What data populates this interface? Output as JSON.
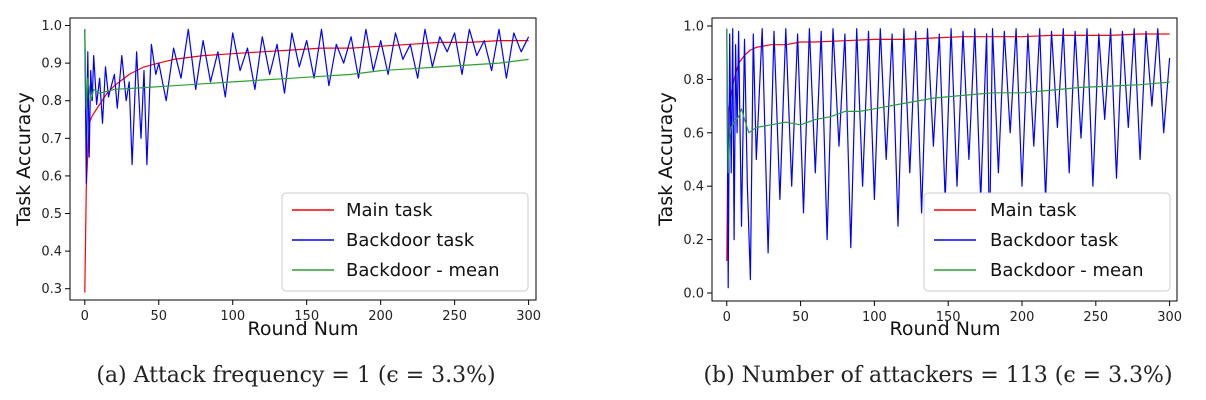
{
  "chart_data": [
    {
      "type": "line",
      "caption": "(a) Attack frequency = 1 (ϵ = 3.3%)",
      "xlabel": "Round Num",
      "ylabel": "Task Accuracy",
      "xlim": [
        -10,
        305
      ],
      "ylim": [
        0.27,
        1.02
      ],
      "xticks": [
        "0",
        "50",
        "100",
        "150",
        "200",
        "250",
        "300"
      ],
      "yticks": [
        "0.3",
        "0.4",
        "0.5",
        "0.6",
        "0.7",
        "0.8",
        "0.9",
        "1.0"
      ],
      "legend_position": "lower-right",
      "series": [
        {
          "name": "Main task",
          "color": "#ff0000",
          "x": [
            0,
            1,
            3,
            5,
            10,
            15,
            20,
            30,
            40,
            50,
            60,
            70,
            80,
            100,
            120,
            140,
            160,
            180,
            200,
            220,
            240,
            260,
            280,
            300
          ],
          "values": [
            0.29,
            0.57,
            0.74,
            0.76,
            0.79,
            0.82,
            0.84,
            0.87,
            0.89,
            0.9,
            0.91,
            0.915,
            0.92,
            0.925,
            0.93,
            0.935,
            0.94,
            0.94,
            0.945,
            0.95,
            0.955,
            0.955,
            0.96,
            0.96
          ]
        },
        {
          "name": "Backdoor task",
          "color": "#0000ff",
          "x": [
            0,
            1,
            2,
            3,
            4,
            5,
            6,
            8,
            10,
            12,
            14,
            16,
            18,
            20,
            22,
            25,
            28,
            30,
            32,
            35,
            38,
            40,
            42,
            45,
            48,
            50,
            55,
            60,
            65,
            70,
            75,
            80,
            85,
            90,
            95,
            100,
            105,
            110,
            115,
            120,
            125,
            130,
            135,
            140,
            145,
            150,
            155,
            160,
            165,
            170,
            175,
            180,
            185,
            190,
            195,
            200,
            205,
            210,
            215,
            220,
            225,
            230,
            235,
            240,
            245,
            250,
            255,
            260,
            265,
            270,
            275,
            280,
            285,
            290,
            295,
            300
          ],
          "values": [
            0.99,
            0.58,
            0.93,
            0.65,
            0.88,
            0.8,
            0.92,
            0.79,
            0.86,
            0.74,
            0.89,
            0.81,
            0.84,
            0.87,
            0.78,
            0.92,
            0.8,
            0.85,
            0.63,
            0.93,
            0.7,
            0.88,
            0.63,
            0.95,
            0.87,
            0.9,
            0.8,
            0.94,
            0.86,
            0.99,
            0.83,
            0.96,
            0.85,
            0.93,
            0.81,
            0.98,
            0.88,
            0.94,
            0.83,
            0.97,
            0.87,
            0.95,
            0.82,
            0.98,
            0.89,
            0.96,
            0.86,
            0.99,
            0.84,
            0.95,
            0.9,
            0.97,
            0.86,
            0.99,
            0.88,
            0.96,
            0.87,
            0.98,
            0.91,
            0.95,
            0.86,
            0.99,
            0.89,
            0.97,
            0.93,
            0.98,
            0.87,
            0.99,
            0.92,
            0.96,
            0.88,
            0.99,
            0.86,
            0.98,
            0.93,
            0.97
          ]
        },
        {
          "name": "Backdoor - mean",
          "color": "#2ca02c",
          "x": [
            0,
            1,
            2,
            4,
            6,
            10,
            20,
            40,
            60,
            80,
            100,
            120,
            140,
            160,
            180,
            200,
            220,
            240,
            260,
            280,
            300
          ],
          "values": [
            0.99,
            0.78,
            0.86,
            0.8,
            0.83,
            0.82,
            0.83,
            0.835,
            0.84,
            0.845,
            0.85,
            0.855,
            0.86,
            0.865,
            0.87,
            0.88,
            0.885,
            0.89,
            0.895,
            0.9,
            0.91
          ]
        }
      ]
    },
    {
      "type": "line",
      "caption": "(b) Number of attackers = 113 (ϵ = 3.3%)",
      "xlabel": "Round Num",
      "ylabel": "Task Accuracy",
      "xlim": [
        -10,
        305
      ],
      "ylim": [
        -0.03,
        1.03
      ],
      "xticks": [
        "0",
        "50",
        "100",
        "150",
        "200",
        "250",
        "300"
      ],
      "yticks": [
        "0.0",
        "0.2",
        "0.4",
        "0.6",
        "0.8",
        "1.0"
      ],
      "legend_position": "lower-right",
      "series": [
        {
          "name": "Main task",
          "color": "#ff0000",
          "x": [
            0,
            1,
            3,
            5,
            8,
            12,
            16,
            20,
            30,
            40,
            50,
            60,
            80,
            100,
            120,
            140,
            160,
            180,
            200,
            220,
            240,
            260,
            280,
            300
          ],
          "values": [
            0.12,
            0.68,
            0.75,
            0.8,
            0.86,
            0.89,
            0.91,
            0.92,
            0.93,
            0.93,
            0.94,
            0.94,
            0.945,
            0.95,
            0.95,
            0.955,
            0.96,
            0.96,
            0.96,
            0.965,
            0.965,
            0.965,
            0.97,
            0.97
          ]
        },
        {
          "name": "Backdoor task",
          "color": "#0000ff",
          "x": [
            0,
            1,
            2,
            3,
            4,
            5,
            6,
            7,
            8,
            10,
            12,
            14,
            16,
            18,
            20,
            24,
            28,
            32,
            36,
            40,
            44,
            48,
            52,
            56,
            60,
            64,
            68,
            72,
            76,
            80,
            84,
            88,
            92,
            96,
            100,
            104,
            108,
            112,
            116,
            120,
            124,
            128,
            132,
            136,
            140,
            144,
            148,
            152,
            156,
            160,
            164,
            168,
            172,
            176,
            178,
            180,
            184,
            188,
            192,
            196,
            200,
            204,
            208,
            212,
            216,
            220,
            224,
            228,
            232,
            236,
            240,
            244,
            248,
            252,
            256,
            260,
            264,
            268,
            272,
            276,
            280,
            284,
            288,
            292,
            296,
            300
          ],
          "values": [
            0.99,
            0.02,
            0.97,
            0.45,
            0.99,
            0.2,
            0.93,
            0.6,
            0.98,
            0.25,
            0.95,
            0.4,
            0.05,
            0.97,
            0.5,
            0.99,
            0.15,
            0.98,
            0.35,
            0.99,
            0.4,
            0.97,
            0.3,
            0.99,
            0.45,
            0.98,
            0.2,
            0.99,
            0.55,
            0.97,
            0.17,
            0.99,
            0.4,
            0.98,
            0.35,
            0.99,
            0.5,
            0.97,
            0.25,
            0.99,
            0.45,
            0.98,
            0.3,
            0.99,
            0.55,
            0.97,
            0.35,
            0.99,
            0.4,
            0.98,
            0.5,
            0.99,
            0.35,
            0.97,
            0.18,
            0.99,
            0.45,
            0.98,
            0.6,
            0.99,
            0.4,
            0.97,
            0.55,
            0.99,
            0.35,
            0.98,
            0.62,
            0.99,
            0.45,
            0.98,
            0.58,
            0.99,
            0.4,
            0.97,
            0.65,
            0.99,
            0.43,
            0.98,
            0.62,
            0.99,
            0.5,
            0.98,
            0.7,
            0.99,
            0.6,
            0.88
          ]
        },
        {
          "name": "Backdoor - mean",
          "color": "#2ca02c",
          "x": [
            0,
            1,
            2,
            3,
            5,
            8,
            10,
            12,
            15,
            20,
            30,
            40,
            50,
            60,
            70,
            80,
            90,
            100,
            120,
            140,
            160,
            180,
            200,
            220,
            240,
            260,
            280,
            300
          ],
          "values": [
            0.99,
            0.45,
            0.58,
            0.62,
            0.64,
            0.66,
            0.69,
            0.65,
            0.6,
            0.62,
            0.63,
            0.64,
            0.63,
            0.65,
            0.66,
            0.68,
            0.68,
            0.69,
            0.71,
            0.73,
            0.74,
            0.75,
            0.75,
            0.76,
            0.77,
            0.775,
            0.78,
            0.79
          ]
        }
      ]
    }
  ]
}
